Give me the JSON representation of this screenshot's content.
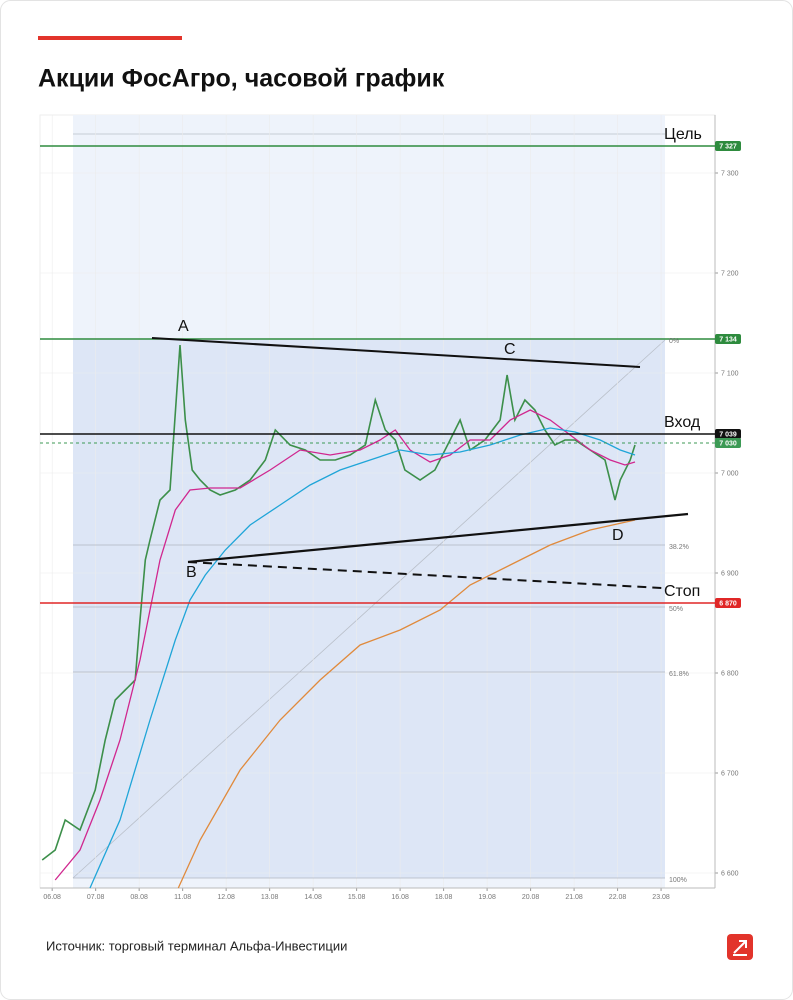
{
  "header": {
    "title": "Акции ФосАгро, часовой график"
  },
  "chart_data": {
    "type": "line",
    "xlim": [
      -0.28,
      15.24
    ],
    "ylim": [
      6585,
      7358
    ],
    "xticks": [
      {
        "value": 0,
        "label": "06.08"
      },
      {
        "value": 1,
        "label": "07.08"
      },
      {
        "value": 2,
        "label": "08.08"
      },
      {
        "value": 3,
        "label": "11.08"
      },
      {
        "value": 4,
        "label": "12.08"
      },
      {
        "value": 5,
        "label": "13.08"
      },
      {
        "value": 6,
        "label": "14.08"
      },
      {
        "value": 7,
        "label": "15.08"
      },
      {
        "value": 8,
        "label": "16.08"
      },
      {
        "value": 9,
        "label": "18.08"
      },
      {
        "value": 10,
        "label": "19.08"
      },
      {
        "value": 11,
        "label": "20.08"
      },
      {
        "value": 12,
        "label": "21.08"
      },
      {
        "value": 13,
        "label": "22.08"
      },
      {
        "value": 14,
        "label": "23.08"
      }
    ],
    "yticks": [
      {
        "value": 6600,
        "label": "6 600"
      },
      {
        "value": 6700,
        "label": "6 700"
      },
      {
        "value": 6800,
        "label": "6 800"
      },
      {
        "value": 6900,
        "label": "6 900"
      },
      {
        "value": 7000,
        "label": "7 000"
      },
      {
        "value": 7100,
        "label": "7 100"
      },
      {
        "value": 7200,
        "label": "7 200"
      },
      {
        "value": 7300,
        "label": "7 300"
      }
    ],
    "grid": true,
    "series": [
      {
        "color": "#3c8f4a",
        "x": [
          -0.23,
          0.07,
          0.3,
          0.64,
          0.99,
          1.22,
          1.45,
          1.68,
          1.91,
          2.02,
          2.14,
          2.25,
          2.48,
          2.71,
          2.94,
          3.06,
          3.22,
          3.4,
          3.63,
          3.86,
          4.21,
          4.55,
          4.9,
          5.13,
          5.47,
          5.82,
          6.16,
          6.51,
          6.85,
          7.2,
          7.43,
          7.66,
          7.89,
          8.11,
          8.46,
          8.8,
          9.15,
          9.38,
          9.61,
          9.95,
          10.3,
          10.46,
          10.64,
          10.87,
          11.1,
          11.33,
          11.56,
          11.79,
          12.02,
          12.37,
          12.71,
          12.94,
          13.06,
          13.29,
          13.4
        ],
        "values": [
          6613,
          6623,
          6653,
          6643,
          6683,
          6733,
          6773,
          6783,
          6793,
          6853,
          6913,
          6933,
          6973,
          6983,
          7128,
          7053,
          7003,
          6993,
          6983,
          6978,
          6983,
          6993,
          7013,
          7043,
          7028,
          7023,
          7013,
          7013,
          7018,
          7028,
          7073,
          7043,
          7033,
          7003,
          6993,
          7003,
          7033,
          7053,
          7023,
          7033,
          7053,
          7098,
          7053,
          7073,
          7063,
          7043,
          7028,
          7033,
          7033,
          7023,
          7013,
          6973,
          6993,
          7013,
          7028
        ]
      },
      {
        "color": "#d0278f",
        "x": [
          0.07,
          0.64,
          1.1,
          1.56,
          2.02,
          2.48,
          2.83,
          3.17,
          3.63,
          4.32,
          5.01,
          5.7,
          6.39,
          7.08,
          7.54,
          7.89,
          8.23,
          8.69,
          9.15,
          9.61,
          10.07,
          10.53,
          10.99,
          11.45,
          11.91,
          12.37,
          12.83,
          13.17,
          13.4
        ],
        "values": [
          6593,
          6623,
          6673,
          6733,
          6813,
          6913,
          6963,
          6983,
          6985,
          6985,
          7003,
          7023,
          7018,
          7023,
          7033,
          7043,
          7023,
          7011,
          7018,
          7033,
          7033,
          7053,
          7063,
          7053,
          7038,
          7023,
          7013,
          7008,
          7011
        ]
      },
      {
        "color": "#1fa5d8",
        "x": [
          0.87,
          1.56,
          2.25,
          2.83,
          3.17,
          3.52,
          3.98,
          4.55,
          5.24,
          5.93,
          6.62,
          7.31,
          8.0,
          8.69,
          9.38,
          10.07,
          10.76,
          11.45,
          12.02,
          12.6,
          13.06,
          13.4
        ],
        "values": [
          6585,
          6653,
          6753,
          6833,
          6873,
          6898,
          6923,
          6948,
          6968,
          6988,
          7003,
          7013,
          7023,
          7018,
          7021,
          7028,
          7038,
          7045,
          7041,
          7033,
          7023,
          7018
        ]
      },
      {
        "color": "#e08a3c",
        "x": [
          2.9,
          3.4,
          4.32,
          5.24,
          6.16,
          7.08,
          8.0,
          8.92,
          9.61,
          10.53,
          11.45,
          12.37,
          13.4
        ],
        "values": [
          6585,
          6633,
          6703,
          6753,
          6793,
          6828,
          6843,
          6863,
          6888,
          6908,
          6928,
          6943,
          6953
        ]
      }
    ],
    "levels": [
      {
        "value": 7327,
        "label": "7 327",
        "color": "#2e8b3e",
        "name": "Цель"
      },
      {
        "value": 7134,
        "label": "7 134",
        "color": "#2e8b3e"
      },
      {
        "value": 7039,
        "label": "7 039",
        "color": "#111111",
        "name": "Вход"
      },
      {
        "value": 7030,
        "label": "7 030",
        "color": "#3c9a55"
      },
      {
        "value": 6870,
        "label": "6 870",
        "color": "#e02727",
        "name": "Стоп"
      }
    ],
    "fib_levels": [
      {
        "value": 7134,
        "label": "0%"
      },
      {
        "value": 6928,
        "label": "38.2%"
      },
      {
        "value": 6866,
        "label": "50%"
      },
      {
        "value": 6801,
        "label": "61.8%"
      },
      {
        "value": 6595,
        "label": "100%"
      }
    ],
    "annotations": [
      "A",
      "B",
      "C",
      "D"
    ]
  },
  "footer": {
    "source": "Источник: торговый терминал Альфа-Инвестиции"
  }
}
